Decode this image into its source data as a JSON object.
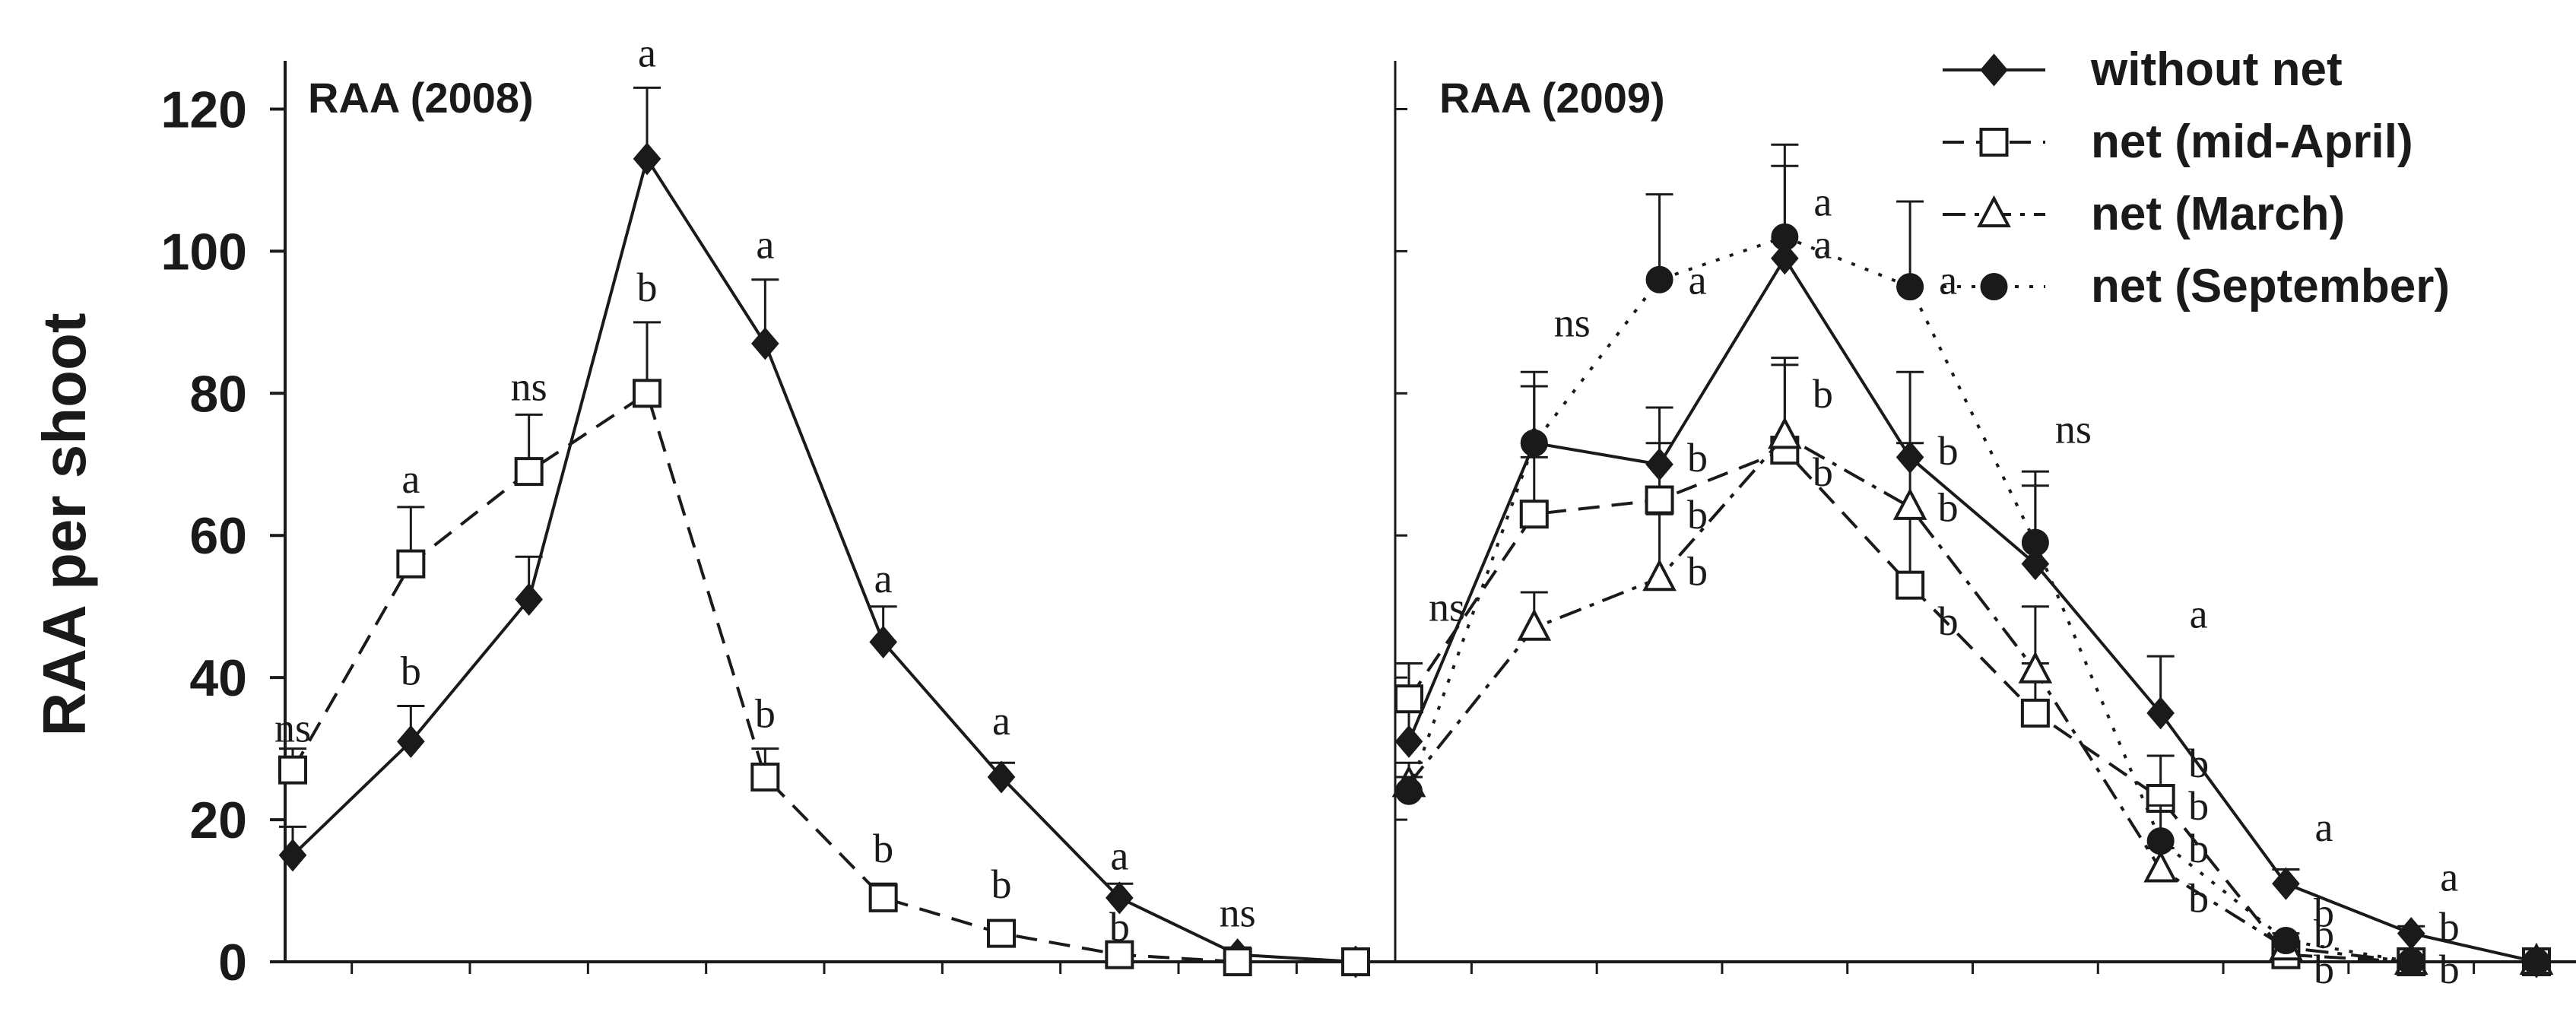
{
  "chart_data": {
    "ylabel": "RAA per shoot",
    "yticks": [
      "0",
      "20",
      "40",
      "60",
      "80",
      "100",
      "120"
    ],
    "ylim": [
      0,
      130
    ],
    "legend_position": "top-right",
    "legend": [
      {
        "key": "without_net",
        "label": "without net"
      },
      {
        "key": "net_mid_april",
        "label": "net (mid-April)"
      },
      {
        "key": "net_march",
        "label": "net (March)"
      },
      {
        "key": "net_september",
        "label": "net (September)"
      }
    ],
    "colors": {
      "line": "#1a1a1a",
      "marker_open": "#ffffff",
      "background": "#ffffff"
    },
    "panels": [
      {
        "type": "line",
        "title": "RAA (2008)",
        "x": [
          1,
          2,
          3,
          4,
          5,
          6,
          7,
          8,
          9,
          10
        ],
        "series": [
          {
            "key": "without_net",
            "name": "without net",
            "values": [
              15,
              31,
              51,
              113,
              87,
              45,
              26,
              9,
              1,
              0
            ],
            "errors": [
              4,
              5,
              6,
              10,
              9,
              5,
              2,
              2,
              1,
              0
            ]
          },
          {
            "key": "net_mid_april",
            "name": "net (mid-April)",
            "values": [
              27,
              56,
              69,
              80,
              26,
              9,
              4,
              1,
              0,
              0
            ],
            "errors": [
              3,
              8,
              8,
              10,
              4,
              2,
              1,
              1,
              1,
              0
            ]
          }
        ],
        "annotations": [
          {
            "x": 1,
            "y": 31,
            "text": "ns"
          },
          {
            "x": 2,
            "y": 39,
            "text": "b"
          },
          {
            "x": 2,
            "y": 66,
            "text": "a"
          },
          {
            "x": 3,
            "y": 79,
            "text": "ns"
          },
          {
            "x": 4,
            "y": 126,
            "text": "a"
          },
          {
            "x": 4,
            "y": 93,
            "text": "b"
          },
          {
            "x": 5,
            "y": 99,
            "text": "a"
          },
          {
            "x": 5,
            "y": 33,
            "text": "b"
          },
          {
            "x": 6,
            "y": 52,
            "text": "a"
          },
          {
            "x": 6,
            "y": 14,
            "text": "b"
          },
          {
            "x": 7,
            "y": 32,
            "text": "a"
          },
          {
            "x": 7,
            "y": 9,
            "text": "b"
          },
          {
            "x": 8,
            "y": 13,
            "text": "a"
          },
          {
            "x": 8,
            "y": 3,
            "text": "b"
          },
          {
            "x": 9,
            "y": 5,
            "text": "ns"
          }
        ]
      },
      {
        "type": "line",
        "title": "RAA (2009)",
        "x": [
          1,
          2,
          3,
          4,
          5,
          6,
          7,
          8,
          9,
          10
        ],
        "series": [
          {
            "key": "without_net",
            "name": "without net",
            "values": [
              31,
              73,
              70,
              99,
              71,
              56,
              35,
              11,
              4,
              0
            ],
            "errors": [
              6,
              8,
              8,
              13,
              12,
              11,
              8,
              2,
              1,
              0
            ]
          },
          {
            "key": "net_mid_april",
            "name": "net (mid-April)",
            "values": [
              37,
              63,
              65,
              72,
              53,
              35,
              23,
              1,
              0,
              0
            ],
            "errors": [
              5,
              8,
              8,
              12,
              10,
              7,
              6,
              1,
              0,
              0
            ]
          },
          {
            "key": "net_march",
            "name": "net (March)",
            "values": [
              25,
              47,
              54,
              74,
              64,
              41,
              13,
              2,
              0,
              0
            ],
            "errors": [
              3,
              5,
              9,
              11,
              9,
              9,
              3,
              1,
              0,
              0
            ]
          },
          {
            "key": "net_september",
            "name": "net (September)",
            "values": [
              24,
              73,
              96,
              102,
              95,
              59,
              17,
              3,
              0,
              0
            ],
            "errors": [
              2,
              10,
              12,
              13,
              12,
              10,
              5,
              1,
              0,
              0
            ]
          }
        ],
        "annotations": [
          {
            "x": 1,
            "y": 48,
            "text": "ns"
          },
          {
            "x": 2,
            "y": 88,
            "text": "ns"
          },
          {
            "x": 3,
            "y": 94,
            "text": "a"
          },
          {
            "x": 3,
            "y": 69,
            "text": "b"
          },
          {
            "x": 3,
            "y": 61,
            "text": "b"
          },
          {
            "x": 3,
            "y": 53,
            "text": "b"
          },
          {
            "x": 4,
            "y": 105,
            "text": "a"
          },
          {
            "x": 4,
            "y": 99,
            "text": "a"
          },
          {
            "x": 4,
            "y": 78,
            "text": "b"
          },
          {
            "x": 4,
            "y": 67,
            "text": "b"
          },
          {
            "x": 5,
            "y": 94,
            "text": "a"
          },
          {
            "x": 5,
            "y": 70,
            "text": "b"
          },
          {
            "x": 5,
            "y": 62,
            "text": "b"
          },
          {
            "x": 5,
            "y": 46,
            "text": "b"
          },
          {
            "x": 6,
            "y": 73,
            "text": "ns"
          },
          {
            "x": 7,
            "y": 47,
            "text": "a"
          },
          {
            "x": 7,
            "y": 26,
            "text": "b"
          },
          {
            "x": 7,
            "y": 20,
            "text": "b"
          },
          {
            "x": 7,
            "y": 14,
            "text": "b"
          },
          {
            "x": 7,
            "y": 7,
            "text": "b"
          },
          {
            "x": 8,
            "y": 17,
            "text": "a"
          },
          {
            "x": 8,
            "y": 5,
            "text": "b"
          },
          {
            "x": 8,
            "y": 2,
            "text": "b"
          },
          {
            "x": 8,
            "y": -3,
            "text": "b"
          },
          {
            "x": 9,
            "y": 10,
            "text": "a"
          },
          {
            "x": 9,
            "y": 3,
            "text": "b"
          },
          {
            "x": 9,
            "y": -3,
            "text": "b"
          }
        ]
      }
    ]
  }
}
